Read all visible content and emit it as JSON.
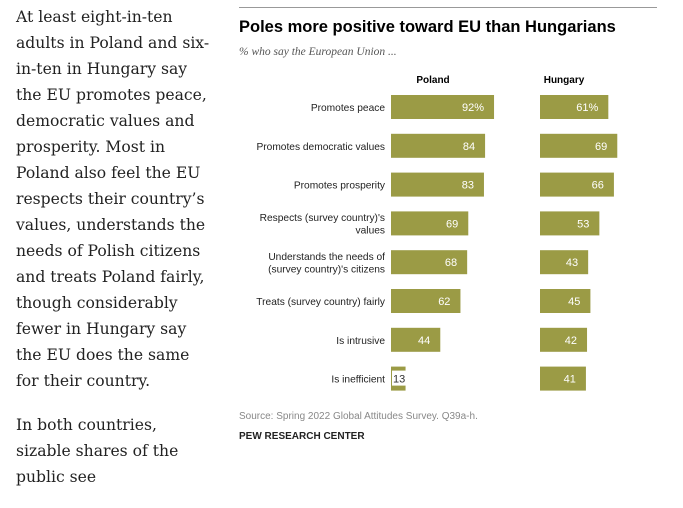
{
  "article": {
    "paragraph1": "At least eight-in-ten adults in Poland and six-in-ten in Hungary say the EU promotes peace, democratic values and prosperity. Most in Poland also feel the EU respects their country’s values, understands the needs of Polish citizens and treats Poland fairly, though considerably fewer in Hungary say the EU does the same for their country.",
    "paragraph2": "In both countries, sizable shares of the public see"
  },
  "figure": {
    "title": "Poles more positive toward EU than Hungarians",
    "subtitle": "% who say the European Union ...",
    "note": "Source: Spring 2022 Global Attitudes Survey. Q39a-h.",
    "credit": "PEW RESEARCH CENTER"
  },
  "colors": {
    "bar": "#9b9b45",
    "bar_label": "#ffffff",
    "small_value_label": "#333333",
    "text": "#222222"
  },
  "chart_data": {
    "type": "bar",
    "orientation": "horizontal",
    "categories": [
      "Promotes peace",
      "Promotes democratic values",
      "Promotes prosperity",
      "Respects (survey country)'s values",
      "Understands the needs of (survey country)'s citizens",
      "Treats (survey country) fairly",
      "Is intrusive",
      "Is inefficient"
    ],
    "category_label_lines": [
      [
        "Promotes peace"
      ],
      [
        "Promotes democratic values"
      ],
      [
        "Promotes prosperity"
      ],
      [
        "Respects (survey country)'s",
        "values"
      ],
      [
        "Understands the needs of",
        "(survey country)'s citizens"
      ],
      [
        "Treats (survey country) fairly"
      ],
      [
        "Is intrusive"
      ],
      [
        "Is inefficient"
      ]
    ],
    "series": [
      {
        "name": "Poland",
        "values": [
          92,
          84,
          83,
          69,
          68,
          62,
          44,
          13
        ],
        "value_labels": [
          "92%",
          "84",
          "83",
          "69",
          "68",
          "62",
          "44",
          "13"
        ]
      },
      {
        "name": "Hungary",
        "values": [
          61,
          69,
          66,
          53,
          43,
          45,
          42,
          41
        ],
        "value_labels": [
          "61%",
          "69",
          "66",
          "53",
          "43",
          "45",
          "42",
          "41"
        ]
      }
    ],
    "xlim": [
      0,
      100
    ],
    "grid": false,
    "legend": "panel headers"
  }
}
